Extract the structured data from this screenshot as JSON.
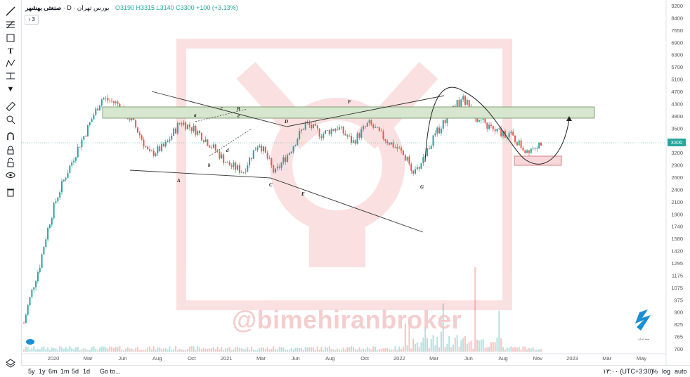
{
  "header": {
    "symbol": "صنعتی بهشهر",
    "separator": "·",
    "timeframe": "D",
    "exchange": "بورس تهران",
    "ohlc": "O3190 H3315 L3140 C3300 +100 (+3.13%)",
    "collapse_label": "› 3"
  },
  "watermark": {
    "text": "@bimehiranbroker"
  },
  "colors": {
    "up": "#26a69a",
    "down": "#ef5350",
    "volume_up": "#26a69a",
    "volume_down": "#ef5350",
    "zone": "#d7e7cf",
    "box": "#f8d7da"
  },
  "bottom_bar": {
    "ranges": [
      "5y",
      "1y",
      "6m",
      "1m",
      "5d",
      "1d"
    ],
    "goto": "Go to...",
    "time": "۱۳:۰۰ (UTC+3:30)",
    "percent": "%",
    "log": "log",
    "auto": "auto"
  },
  "left_toolbar_icons": [
    "trend-line-icon",
    "fib-icon",
    "rectangle-icon",
    "text-icon",
    "pattern-icon",
    "measure-icon",
    "arrow-down-icon",
    "ruler-icon",
    "zoom-icon",
    "magnet-icon",
    "lock-drawing-icon",
    "lock-icon",
    "eye-icon",
    "trash-icon"
  ],
  "chart_data": {
    "type": "line",
    "price_axis_ticks": [
      "9200",
      "8400",
      "7650",
      "6900",
      "6300",
      "5700",
      "5100",
      "4700",
      "4300",
      "3900",
      "3500",
      "3300",
      "3200",
      "2900",
      "2600",
      "2400",
      "2100",
      "1900",
      "1740",
      "1580",
      "1420",
      "1295",
      "1175",
      "1075",
      "975",
      "900",
      "825",
      "765",
      "700"
    ],
    "current_price": "3300",
    "time_axis_ticks": [
      "2020",
      "Mar",
      "Jun",
      "Aug",
      "Oct",
      "2021",
      "Mar",
      "Jun",
      "Aug",
      "Oct",
      "2022",
      "Mar",
      "Jun",
      "Aug",
      "Nov",
      "2023",
      "Mar",
      "May"
    ],
    "wave_labels": [
      "A",
      "B",
      "C",
      "D",
      "E",
      "F",
      "G",
      "a",
      "b",
      "c",
      "d",
      "e"
    ],
    "x": [
      "2020-01",
      "2020-02",
      "2020-03",
      "2020-04",
      "2020-05",
      "2020-06",
      "2020-07",
      "2020-08",
      "2020-09",
      "2020-10",
      "2020-11",
      "2020-12",
      "2021-01",
      "2021-02",
      "2021-03",
      "2021-04",
      "2021-05",
      "2021-06",
      "2021-07",
      "2021-08",
      "2021-09",
      "2021-10",
      "2021-11",
      "2021-12",
      "2022-01",
      "2022-02",
      "2022-03",
      "2022-04",
      "2022-05",
      "2022-06",
      "2022-07",
      "2022-08",
      "2022-09",
      "2022-10"
    ],
    "series": [
      {
        "values": [
          850,
          1300,
          2100,
          2800,
          3600,
          4600,
          4400,
          3800,
          3000,
          3200,
          3850,
          3600,
          3200,
          2800,
          2650,
          3300,
          2600,
          3100,
          3800,
          3500,
          3700,
          3300,
          3800,
          3400,
          3100,
          2600,
          3300,
          4000,
          4600,
          3900,
          3600,
          3500,
          3100,
          3300
        ]
      }
    ],
    "scale": "log",
    "grid": false
  }
}
